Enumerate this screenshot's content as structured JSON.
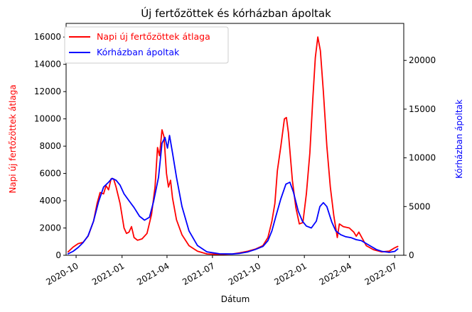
{
  "chart_data": {
    "type": "line",
    "title": "Új fertőzöttek és kórházban ápoltak",
    "xlabel": "Dátum",
    "ylabel_left": "Napi új fertőzöttek átlaga",
    "ylabel_right": "Kórházban ápoltak",
    "x_range": [
      "2020-09-11",
      "2022-07-19"
    ],
    "ylim_left": [
      0,
      17000
    ],
    "ylim_right": [
      0,
      23800
    ],
    "x_ticks": [
      {
        "date": "2020-10-01",
        "label": "2020-10"
      },
      {
        "date": "2021-01-01",
        "label": "2021-01"
      },
      {
        "date": "2021-04-01",
        "label": "2021-04"
      },
      {
        "date": "2021-07-01",
        "label": "2021-07"
      },
      {
        "date": "2021-10-01",
        "label": "2021-10"
      },
      {
        "date": "2022-01-01",
        "label": "2022-01"
      },
      {
        "date": "2022-04-01",
        "label": "2022-04"
      },
      {
        "date": "2022-07-01",
        "label": "2022-07"
      }
    ],
    "y_ticks_left": [
      {
        "value": 0,
        "label": "0"
      },
      {
        "value": 2000,
        "label": "2000"
      },
      {
        "value": 4000,
        "label": "4000"
      },
      {
        "value": 6000,
        "label": "6000"
      },
      {
        "value": 8000,
        "label": "8000"
      },
      {
        "value": 10000,
        "label": "10000"
      },
      {
        "value": 12000,
        "label": "12000"
      },
      {
        "value": 14000,
        "label": "14000"
      },
      {
        "value": 16000,
        "label": "16000"
      }
    ],
    "y_ticks_right": [
      {
        "value": 0,
        "label": "0"
      },
      {
        "value": 5000,
        "label": "5000"
      },
      {
        "value": 10000,
        "label": "10000"
      },
      {
        "value": 15000,
        "label": "15000"
      },
      {
        "value": 20000,
        "label": "20000"
      }
    ],
    "legend_position": "top-left",
    "grid": false,
    "series": [
      {
        "name": "Napi új fertőzöttek átlaga",
        "axis": "left",
        "color": "#ff0000",
        "points": [
          [
            "2020-09-15",
            250
          ],
          [
            "2020-09-25",
            600
          ],
          [
            "2020-10-05",
            850
          ],
          [
            "2020-10-15",
            950
          ],
          [
            "2020-10-25",
            1400
          ],
          [
            "2020-11-05",
            2500
          ],
          [
            "2020-11-12",
            3800
          ],
          [
            "2020-11-18",
            4600
          ],
          [
            "2020-11-25",
            4500
          ],
          [
            "2020-11-30",
            5100
          ],
          [
            "2020-12-05",
            4800
          ],
          [
            "2020-12-10",
            5600
          ],
          [
            "2020-12-15",
            5600
          ],
          [
            "2020-12-20",
            5000
          ],
          [
            "2020-12-28",
            3800
          ],
          [
            "2021-01-05",
            2000
          ],
          [
            "2021-01-10",
            1600
          ],
          [
            "2021-01-15",
            1700
          ],
          [
            "2021-01-20",
            2100
          ],
          [
            "2021-01-25",
            1300
          ],
          [
            "2021-02-01",
            1100
          ],
          [
            "2021-02-10",
            1200
          ],
          [
            "2021-02-20",
            1600
          ],
          [
            "2021-03-01",
            3000
          ],
          [
            "2021-03-08",
            5000
          ],
          [
            "2021-03-13",
            7900
          ],
          [
            "2021-03-17",
            7300
          ],
          [
            "2021-03-22",
            9200
          ],
          [
            "2021-03-26",
            8700
          ],
          [
            "2021-03-31",
            6000
          ],
          [
            "2021-04-04",
            5000
          ],
          [
            "2021-04-08",
            5500
          ],
          [
            "2021-04-12",
            4200
          ],
          [
            "2021-04-20",
            2600
          ],
          [
            "2021-05-01",
            1500
          ],
          [
            "2021-05-15",
            700
          ],
          [
            "2021-06-01",
            300
          ],
          [
            "2021-06-20",
            100
          ],
          [
            "2021-07-15",
            60
          ],
          [
            "2021-08-10",
            100
          ],
          [
            "2021-08-25",
            180
          ],
          [
            "2021-09-10",
            300
          ],
          [
            "2021-09-25",
            450
          ],
          [
            "2021-10-10",
            700
          ],
          [
            "2021-10-20",
            1300
          ],
          [
            "2021-10-28",
            2500
          ],
          [
            "2021-11-03",
            3800
          ],
          [
            "2021-11-08",
            6200
          ],
          [
            "2021-11-15",
            8000
          ],
          [
            "2021-11-22",
            10000
          ],
          [
            "2021-11-26",
            10100
          ],
          [
            "2021-11-30",
            9000
          ],
          [
            "2021-12-08",
            5500
          ],
          [
            "2021-12-15",
            3500
          ],
          [
            "2021-12-22",
            2300
          ],
          [
            "2021-12-29",
            2400
          ],
          [
            "2022-01-05",
            4500
          ],
          [
            "2022-01-12",
            7500
          ],
          [
            "2022-01-18",
            11500
          ],
          [
            "2022-01-23",
            14500
          ],
          [
            "2022-01-28",
            16000
          ],
          [
            "2022-02-02",
            15000
          ],
          [
            "2022-02-08",
            12000
          ],
          [
            "2022-02-15",
            8000
          ],
          [
            "2022-02-22",
            5000
          ],
          [
            "2022-03-01",
            2900
          ],
          [
            "2022-03-08",
            1300
          ],
          [
            "2022-03-12",
            2300
          ],
          [
            "2022-03-20",
            2100
          ],
          [
            "2022-04-01",
            2000
          ],
          [
            "2022-04-10",
            1700
          ],
          [
            "2022-04-15",
            1400
          ],
          [
            "2022-04-20",
            1700
          ],
          [
            "2022-04-26",
            1300
          ],
          [
            "2022-05-05",
            700
          ],
          [
            "2022-05-20",
            400
          ],
          [
            "2022-06-05",
            250
          ],
          [
            "2022-06-20",
            300
          ],
          [
            "2022-07-01",
            550
          ],
          [
            "2022-07-07",
            650
          ]
        ]
      },
      {
        "name": "Kórházban ápoltak",
        "axis": "right",
        "color": "#0000ff",
        "points": [
          [
            "2020-09-15",
            150
          ],
          [
            "2020-09-25",
            400
          ],
          [
            "2020-10-05",
            800
          ],
          [
            "2020-10-15",
            1300
          ],
          [
            "2020-10-25",
            2000
          ],
          [
            "2020-11-05",
            3500
          ],
          [
            "2020-11-15",
            5500
          ],
          [
            "2020-11-25",
            7000
          ],
          [
            "2020-12-05",
            7500
          ],
          [
            "2020-12-12",
            7900
          ],
          [
            "2020-12-20",
            7700
          ],
          [
            "2020-12-28",
            7200
          ],
          [
            "2021-01-05",
            6300
          ],
          [
            "2021-01-15",
            5600
          ],
          [
            "2021-01-25",
            4900
          ],
          [
            "2021-02-05",
            4000
          ],
          [
            "2021-02-15",
            3600
          ],
          [
            "2021-02-25",
            3900
          ],
          [
            "2021-03-05",
            5500
          ],
          [
            "2021-03-15",
            8000
          ],
          [
            "2021-03-22",
            11500
          ],
          [
            "2021-03-28",
            12100
          ],
          [
            "2021-04-02",
            11000
          ],
          [
            "2021-04-06",
            12300
          ],
          [
            "2021-04-12",
            10500
          ],
          [
            "2021-04-20",
            8000
          ],
          [
            "2021-05-01",
            5000
          ],
          [
            "2021-05-15",
            2500
          ],
          [
            "2021-06-01",
            1000
          ],
          [
            "2021-06-20",
            350
          ],
          [
            "2021-07-15",
            150
          ],
          [
            "2021-08-10",
            130
          ],
          [
            "2021-08-25",
            200
          ],
          [
            "2021-09-10",
            350
          ],
          [
            "2021-09-25",
            600
          ],
          [
            "2021-10-10",
            900
          ],
          [
            "2021-10-20",
            1500
          ],
          [
            "2021-10-28",
            2500
          ],
          [
            "2021-11-05",
            4000
          ],
          [
            "2021-11-15",
            5800
          ],
          [
            "2021-11-25",
            7300
          ],
          [
            "2021-12-03",
            7500
          ],
          [
            "2021-12-10",
            6500
          ],
          [
            "2021-12-20",
            4500
          ],
          [
            "2021-12-28",
            3500
          ],
          [
            "2022-01-05",
            3000
          ],
          [
            "2022-01-15",
            2800
          ],
          [
            "2022-01-25",
            3500
          ],
          [
            "2022-02-01",
            5000
          ],
          [
            "2022-02-08",
            5400
          ],
          [
            "2022-02-15",
            5000
          ],
          [
            "2022-02-25",
            3400
          ],
          [
            "2022-03-05",
            2500
          ],
          [
            "2022-03-15",
            2100
          ],
          [
            "2022-03-25",
            1900
          ],
          [
            "2022-04-05",
            1800
          ],
          [
            "2022-04-15",
            1600
          ],
          [
            "2022-04-25",
            1500
          ],
          [
            "2022-05-05",
            1200
          ],
          [
            "2022-05-15",
            900
          ],
          [
            "2022-05-25",
            600
          ],
          [
            "2022-06-05",
            400
          ],
          [
            "2022-06-20",
            300
          ],
          [
            "2022-07-01",
            400
          ],
          [
            "2022-07-07",
            650
          ]
        ]
      }
    ]
  }
}
